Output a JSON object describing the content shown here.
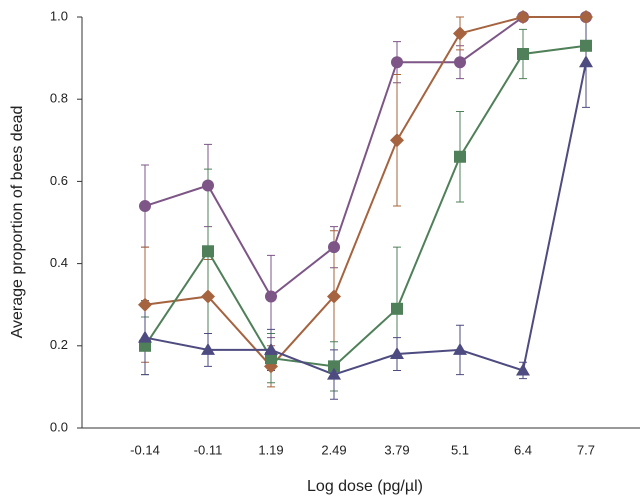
{
  "chart_data": {
    "type": "line",
    "x_label": "Log dose (pg/µl)",
    "y_label": "Average proportion of bees dead",
    "categories": [
      "-0.14",
      "-0.11",
      "1.19",
      "2.49",
      "3.79",
      "5.1",
      "6.4",
      "7.7"
    ],
    "ylim": [
      0,
      1
    ],
    "yticks": [
      {
        "value": 0,
        "label": "0.0"
      },
      {
        "value": 0.2,
        "label": "0.2"
      },
      {
        "value": 0.4,
        "label": "0.4"
      },
      {
        "value": 0.6,
        "label": "0.6"
      },
      {
        "value": 0.8,
        "label": "0.8"
      },
      {
        "value": 1,
        "label": "1.0"
      }
    ],
    "series": [
      {
        "marker": "circle",
        "color": "#7d5586",
        "values": [
          0.54,
          0.59,
          0.32,
          0.44,
          0.89,
          0.89,
          1.0,
          1.0
        ],
        "errors": [
          0.1,
          0.1,
          0.1,
          0.05,
          0.05,
          0.04,
          0,
          0
        ]
      },
      {
        "marker": "diamond",
        "color": "#a5633f",
        "values": [
          0.3,
          0.32,
          0.15,
          0.32,
          0.7,
          0.96,
          1.0,
          1.0
        ],
        "errors": [
          0.14,
          0.09,
          0.05,
          0.16,
          0.16,
          0.04,
          0,
          0
        ]
      },
      {
        "marker": "square",
        "color": "#4f8059",
        "values": [
          0.2,
          0.43,
          0.17,
          0.15,
          0.29,
          0.66,
          0.91,
          0.93
        ],
        "errors": [
          0.07,
          0.2,
          0.06,
          0.06,
          0.15,
          0.11,
          0.06,
          0
        ]
      },
      {
        "marker": "triangle",
        "color": "#4e4b80",
        "values": [
          0.22,
          0.19,
          0.19,
          0.13,
          0.18,
          0.19,
          0.14,
          0.89
        ],
        "errors": [
          0.09,
          0.04,
          0.05,
          0.06,
          0.04,
          0.06,
          0.02,
          0.11
        ]
      }
    ]
  }
}
